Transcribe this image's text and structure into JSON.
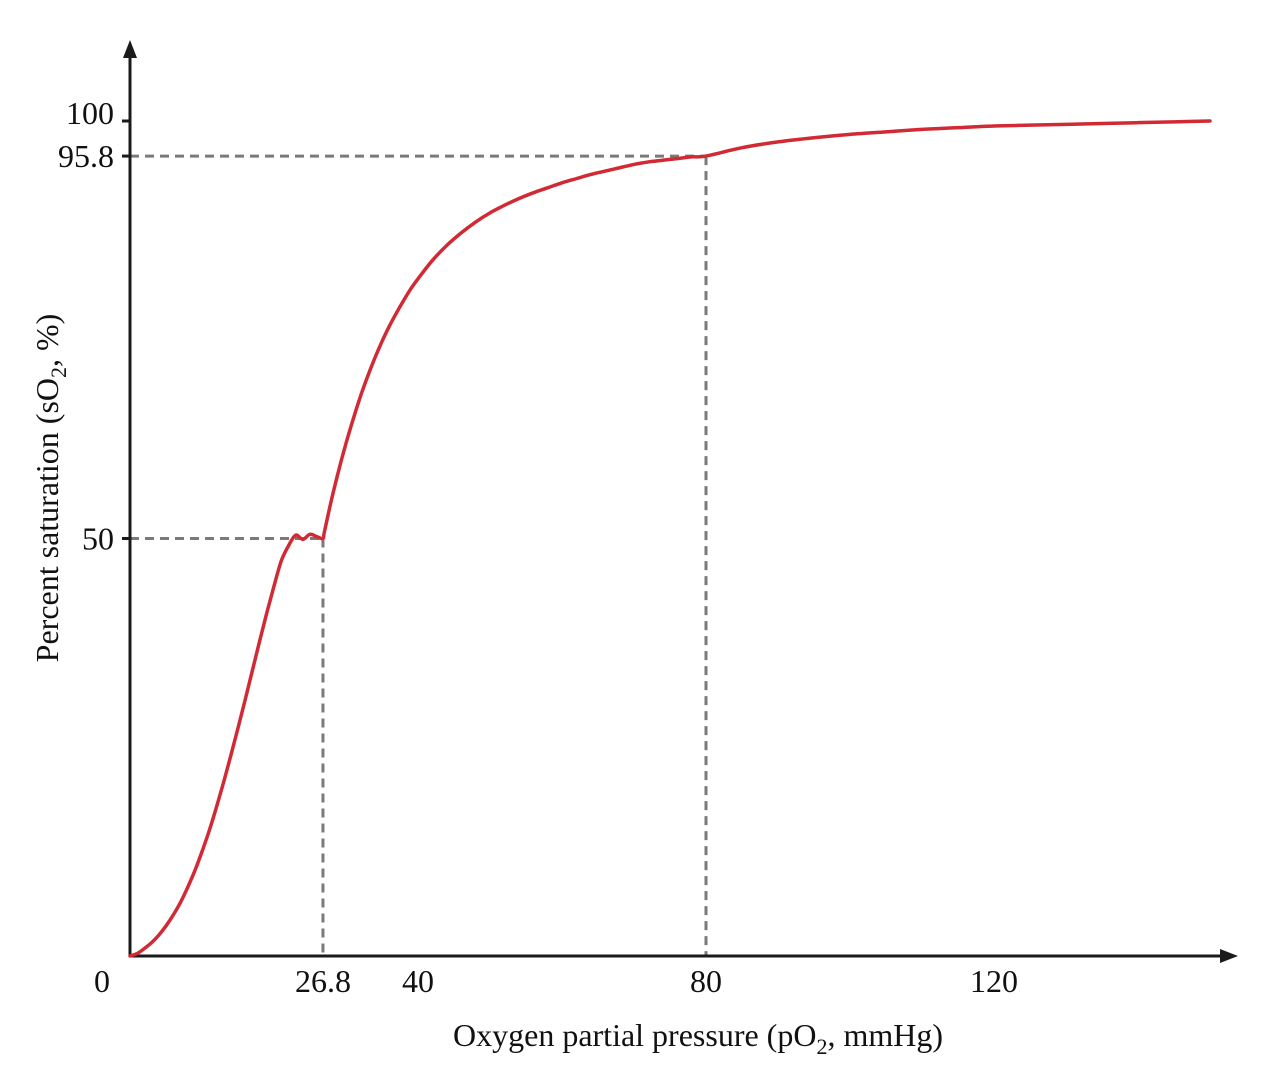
{
  "chart_data": {
    "type": "line",
    "title": "",
    "xlabel": {
      "prefix": "Oxygen partial pressure (pO",
      "sub": "2",
      "suffix": ", mmHg)"
    },
    "ylabel": {
      "prefix": "Percent saturation (sO",
      "sub": "2",
      "suffix": ", %)"
    },
    "xlim": [
      0,
      150
    ],
    "ylim": [
      0,
      100
    ],
    "grid": false,
    "legend": "none",
    "x_ticks": [
      {
        "value": 0,
        "label": "0"
      },
      {
        "value": 26.8,
        "label": "26.8"
      },
      {
        "value": 40,
        "label": "40"
      },
      {
        "value": 80,
        "label": "80"
      },
      {
        "value": 120,
        "label": "120"
      }
    ],
    "y_ticks": [
      {
        "value": 50,
        "label": "50"
      },
      {
        "value": 95.8,
        "label": "95.8"
      },
      {
        "value": 100,
        "label": "100"
      }
    ],
    "reference_points": [
      {
        "x": 26.8,
        "y": 50
      },
      {
        "x": 80,
        "y": 95.8
      }
    ],
    "series": [
      {
        "color": "#d12a35",
        "x": [
          0,
          1,
          2,
          3,
          4,
          5,
          6,
          7,
          8,
          9,
          10,
          11,
          12,
          13,
          14,
          15,
          16,
          17,
          18,
          19,
          20,
          21,
          22,
          23,
          24,
          25,
          26,
          26.8,
          27,
          28,
          29,
          30,
          31,
          32,
          33,
          34,
          35,
          36,
          37,
          38,
          39,
          40,
          42,
          44,
          46,
          48,
          50,
          52,
          54,
          56,
          58,
          60,
          62,
          64,
          66,
          68,
          70,
          72,
          74,
          76,
          78,
          80,
          85,
          90,
          95,
          100,
          105,
          110,
          115,
          120,
          125,
          130,
          135,
          140,
          145,
          150
        ],
        "y": [
          0,
          0.3,
          0.9,
          1.6,
          2.5,
          3.6,
          4.9,
          6.4,
          8.2,
          10.2,
          12.5,
          15,
          17.8,
          20.8,
          24,
          27.3,
          30.7,
          34.2,
          37.7,
          41.1,
          44.3,
          47.3,
          49.1,
          50.4,
          49.9,
          50.5,
          50.2,
          50,
          50.8,
          54.7,
          58.2,
          61.4,
          64.3,
          67,
          69.4,
          71.6,
          73.6,
          75.4,
          77,
          78.5,
          79.9,
          81.1,
          83.3,
          85.1,
          86.6,
          87.9,
          89,
          89.9,
          90.7,
          91.4,
          92,
          92.6,
          93.1,
          93.6,
          94,
          94.4,
          94.8,
          95.1,
          95.3,
          95.5,
          95.7,
          95.8,
          96.8,
          97.5,
          98,
          98.4,
          98.7,
          99,
          99.2,
          99.4,
          99.5,
          99.6,
          99.7,
          99.8,
          99.9,
          100
        ]
      }
    ]
  },
  "colors": {
    "curve": "#d12a35",
    "axis": "#1a1a1a",
    "reference": "#7a7a7a"
  }
}
